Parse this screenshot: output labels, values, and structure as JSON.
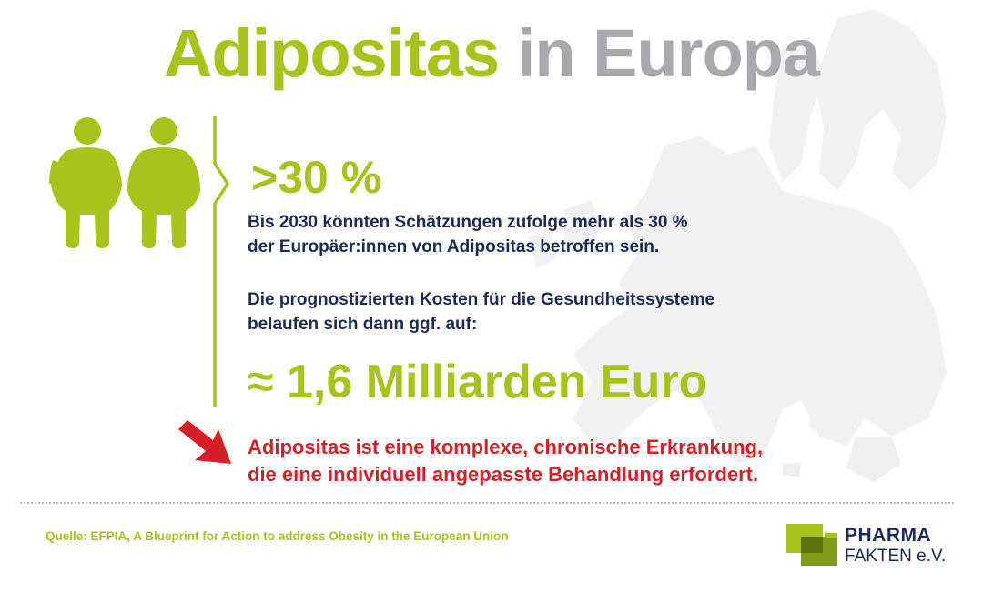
{
  "header": {
    "title_accent": "Adipositas",
    "title_rest": "in Europa"
  },
  "stat": {
    "percentage": ">30 %",
    "paragraph1": [
      "Bis 2030 könnten Schätzungen zufolge mehr als 30 %",
      "der Europäer:innen von Adipositas betroffen sein."
    ],
    "paragraph2": [
      "Die prognostizierten Kosten für die Gesundheitssysteme",
      "belaufen sich dann ggf. auf:"
    ],
    "cost": "≈ 1,6 Milliarden Euro"
  },
  "callout": {
    "lines": [
      "Adipositas ist eine komplexe, chronische Erkrankung,",
      "die eine individuell angepasste Behandlung erfordert."
    ]
  },
  "footer": {
    "source": "Quelle: EFPIA, A Blueprint for Action to address Obesity in the European Union"
  },
  "logo": {
    "line1": "PHARMA",
    "line2": "FAKTEN e.V."
  },
  "icons": {
    "figures": "two-people-icon",
    "arrow": "arrow-down-right-icon",
    "map": "europe-map-icon"
  },
  "colors": {
    "accent_green": "#a8c31c",
    "title_gray": "#a9a9ad",
    "navy": "#1c2a55",
    "red": "#d61f26"
  }
}
